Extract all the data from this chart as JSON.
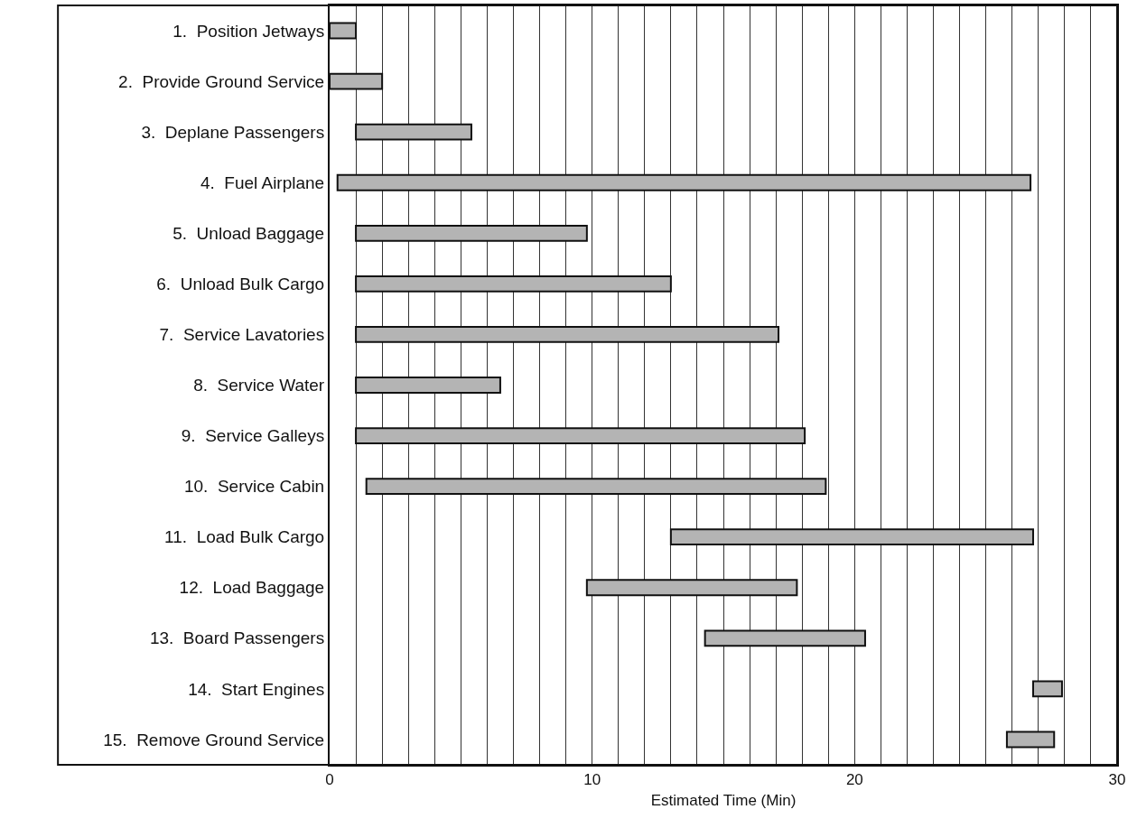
{
  "chart_data": {
    "type": "bar",
    "orientation": "horizontal",
    "xlabel": "Estimated Time (Min)",
    "categories": [
      "1.  Position Jetways",
      "2.  Provide Ground Service",
      "3.  Deplane Passengers",
      "4.  Fuel Airplane",
      "5.  Unload Baggage",
      "6.  Unload Bulk Cargo",
      "7.  Service Lavatories",
      "8.  Service Water",
      "9.  Service Galleys",
      "10.  Service Cabin",
      "11.  Load Bulk Cargo",
      "12.  Load Baggage",
      "13.  Board Passengers",
      "14.  Start Engines",
      "15.  Remove Ground Service"
    ],
    "base": [
      0,
      0,
      1,
      0.3,
      1,
      1,
      1,
      1,
      1,
      1.4,
      13,
      9.8,
      14.3,
      26.8,
      25.8
    ],
    "values": [
      1,
      2,
      4.4,
      26.4,
      8.8,
      12,
      16.1,
      5.5,
      17.1,
      17.5,
      13.8,
      8,
      6.1,
      1.1,
      1.8
    ],
    "color": "#b4b4b4",
    "xlim": [
      0,
      30
    ],
    "xticks": [
      0,
      {
        "value": 1,
        "label": null
      },
      {
        "value": 2,
        "label": null
      },
      {
        "value": 3,
        "label": null
      },
      {
        "value": 4,
        "label": null
      },
      {
        "value": 5,
        "label": null
      },
      {
        "value": 6,
        "label": null
      },
      {
        "value": 7,
        "label": null
      },
      {
        "value": 8,
        "label": null
      },
      {
        "value": 9,
        "label": null
      },
      10,
      {
        "value": 11,
        "label": null
      },
      {
        "value": 12,
        "label": null
      },
      {
        "value": 13,
        "label": null
      },
      {
        "value": 14,
        "label": null
      },
      {
        "value": 15,
        "label": null
      },
      {
        "value": 16,
        "label": null
      },
      {
        "value": 17,
        "label": null
      },
      {
        "value": 18,
        "label": null
      },
      {
        "value": 19,
        "label": null
      },
      20,
      {
        "value": 21,
        "label": null
      },
      {
        "value": 22,
        "label": null
      },
      {
        "value": 23,
        "label": null
      },
      {
        "value": 24,
        "label": null
      },
      {
        "value": 25,
        "label": null
      },
      {
        "value": 26,
        "label": null
      },
      {
        "value": 27,
        "label": null
      },
      {
        "value": 28,
        "label": null
      },
      {
        "value": 29,
        "label": null
      },
      30
    ],
    "grid": "x"
  }
}
